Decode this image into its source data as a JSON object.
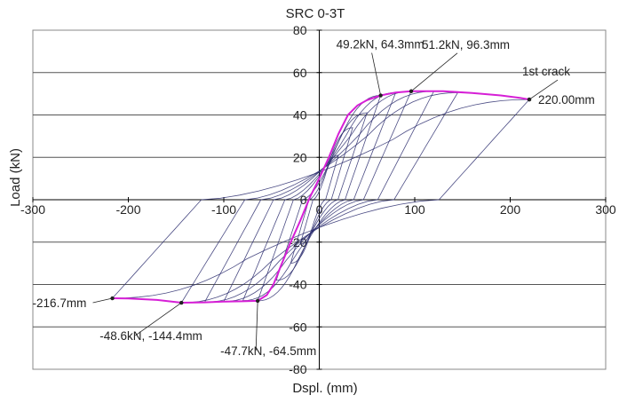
{
  "chart_data": {
    "type": "line",
    "title": "SRC 0-3T",
    "xlabel": "Dspl. (mm)",
    "ylabel": "Load (kN)",
    "xlim": [
      -300,
      300
    ],
    "ylim": [
      -80,
      80
    ],
    "x_ticks": [
      -300,
      -200,
      -100,
      0,
      100,
      200,
      300
    ],
    "y_ticks": [
      -80,
      -60,
      -40,
      -20,
      0,
      20,
      40,
      60,
      80
    ],
    "grid": "horizontal",
    "colors": {
      "hysteresis": "#2b2d6e",
      "envelope": "#d61fd6",
      "grid": "#555555"
    },
    "envelope": {
      "x": [
        -216.7,
        -200,
        -170,
        -144.4,
        -120,
        -100,
        -80,
        -64.5,
        -55,
        -48,
        -40,
        -30,
        -20,
        -10,
        0,
        10,
        20,
        30,
        40,
        50,
        64.3,
        80,
        96.3,
        130,
        160,
        190,
        210,
        220
      ],
      "y": [
        -46.5,
        -46.6,
        -47.3,
        -48.6,
        -48.4,
        -48.1,
        -47.9,
        -47.7,
        -45,
        -40,
        -31,
        -20,
        -10,
        1,
        10,
        20,
        31,
        40,
        44.5,
        47,
        49.2,
        50.6,
        51.2,
        51.2,
        50.4,
        49.2,
        48.1,
        47.3
      ]
    },
    "annotations": [
      {
        "text": "49.2kN, 64.3mm",
        "x": 64.3,
        "y": 49.2
      },
      {
        "text": "51.2kN, 96.3mm",
        "x": 96.3,
        "y": 51.2
      },
      {
        "text": "1st crack",
        "x": 220,
        "y": 47.3
      },
      {
        "text": "220.00mm",
        "x": 220,
        "y": 47.3
      },
      {
        "text": "-216.7mm",
        "x": -216.7,
        "y": -46.5
      },
      {
        "text": "-48.6kN, -144.4mm",
        "x": -144.4,
        "y": -48.6
      },
      {
        "text": "-47.7kN, -64.5mm",
        "x": -64.5,
        "y": -47.7
      }
    ],
    "cycles": [
      {
        "pos": [
          20,
          21
        ],
        "neg": [
          -20,
          -21
        ]
      },
      {
        "pos": [
          35,
          34
        ],
        "neg": [
          -30,
          -30
        ]
      },
      {
        "pos": [
          50,
          41
        ],
        "neg": [
          -45,
          -38
        ]
      },
      {
        "pos": [
          64.3,
          49.2
        ],
        "neg": [
          -64.5,
          -47.7
        ]
      },
      {
        "pos": [
          80,
          50.5
        ],
        "neg": [
          -80,
          -47.6
        ]
      },
      {
        "pos": [
          96.3,
          51.2
        ],
        "neg": [
          -100,
          -48
        ]
      },
      {
        "pos": [
          120,
          51.2
        ],
        "neg": [
          -120,
          -48.3
        ]
      },
      {
        "pos": [
          145,
          50.5
        ],
        "neg": [
          -144.4,
          -48.6
        ]
      },
      {
        "pos": [
          220,
          47.3
        ],
        "neg": [
          -216.7,
          -46.5
        ]
      }
    ]
  }
}
